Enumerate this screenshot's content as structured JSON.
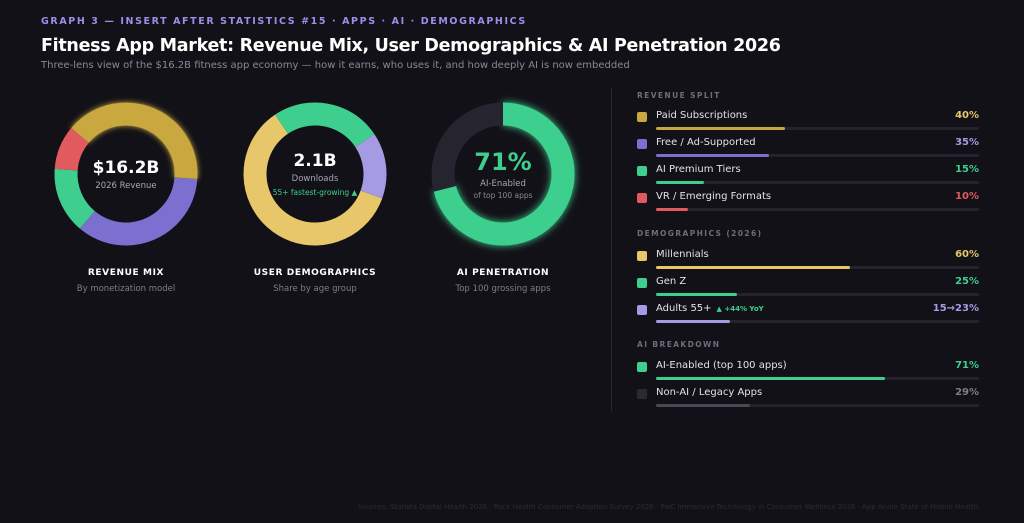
{
  "header": {
    "kicker": "GRAPH 3 — INSERT AFTER STATISTICS #15 · APPS · AI · DEMOGRAPHICS",
    "title": "Fitness App Market: Revenue Mix, User Demographics & AI Penetration 2026",
    "subtitle": "Three-lens view of the $16.2B fitness app economy — how it earns, who uses it, and how deeply AI is now embedded"
  },
  "chart_data": [
    {
      "type": "pie",
      "title": "REVENUE MIX",
      "subtitle": "By monetization model",
      "center_value": "$16.2B",
      "center_label": "2026 Revenue",
      "slices": [
        {
          "name": "Paid Subscriptions",
          "value": 40,
          "color": "#c9a83f"
        },
        {
          "name": "Free / Ad-Supported",
          "value": 35,
          "color": "#7b6fd0"
        },
        {
          "name": "AI Premium Tiers",
          "value": 15,
          "color": "#3ecf8e"
        },
        {
          "name": "VR / Emerging Formats",
          "value": 10,
          "color": "#e05a5e"
        }
      ]
    },
    {
      "type": "pie",
      "title": "USER DEMOGRAPHICS",
      "subtitle": "Share by age group",
      "center_value": "2.1B",
      "center_label": "Downloads",
      "center_note": "55+ fastest-growing ▲",
      "slices": [
        {
          "name": "Millennials",
          "value": 60,
          "color": "#e8c76a"
        },
        {
          "name": "Gen Z",
          "value": 25,
          "color": "#3ecf8e"
        },
        {
          "name": "Adults 55+",
          "value": 15,
          "color": "#a59be3"
        }
      ]
    },
    {
      "type": "pie",
      "title": "AI PENETRATION",
      "subtitle": "Top 100 grossing apps",
      "center_value": "71%",
      "center_label": "AI-Enabled",
      "center_note": "of top 100 apps",
      "slices": [
        {
          "name": "AI-Enabled (top 100 apps)",
          "value": 71,
          "color": "#3ecf8e"
        },
        {
          "name": "Non-AI / Legacy Apps",
          "value": 29,
          "color": "#26242f"
        }
      ]
    }
  ],
  "legend": {
    "sections": [
      {
        "heading": "REVENUE SPLIT",
        "rows": [
          {
            "label": "Paid Subscriptions",
            "value": "40%",
            "fraction": 0.4,
            "color": "#c9a83f",
            "value_color": "#e8c76a"
          },
          {
            "label": "Free / Ad-Supported",
            "value": "35%",
            "fraction": 0.35,
            "color": "#7b6fd0",
            "value_color": "#a59be3"
          },
          {
            "label": "AI Premium Tiers",
            "value": "15%",
            "fraction": 0.15,
            "color": "#3ecf8e",
            "value_color": "#3ecf8e"
          },
          {
            "label": "VR / Emerging Formats",
            "value": "10%",
            "fraction": 0.1,
            "color": "#e05a5e",
            "value_color": "#e05a5e"
          }
        ]
      },
      {
        "heading": "DEMOGRAPHICS (2026)",
        "rows": [
          {
            "label": "Millennials",
            "value": "60%",
            "fraction": 0.6,
            "color": "#e8c76a",
            "value_color": "#e8c76a"
          },
          {
            "label": "Gen Z",
            "value": "25%",
            "fraction": 0.25,
            "color": "#3ecf8e",
            "value_color": "#3ecf8e"
          },
          {
            "label": "Adults 55+",
            "tag": "▲ +44% YoY",
            "value": "15→23%",
            "fraction": 0.23,
            "color": "#a59be3",
            "value_color": "#a59be3"
          }
        ]
      },
      {
        "heading": "AI BREAKDOWN",
        "rows": [
          {
            "label": "AI-Enabled (top 100 apps)",
            "value": "71%",
            "fraction": 0.71,
            "color": "#3ecf8e",
            "value_color": "#3ecf8e"
          },
          {
            "label": "Non-AI / Legacy Apps",
            "value": "29%",
            "fraction": 0.29,
            "color": "#2b2934",
            "value_color": "#7f7d8a",
            "fill_color": "#4a4856"
          }
        ]
      }
    ]
  },
  "footer": {
    "sources": "Sources: Statista Digital Health 2026 · Rock Health Consumer Adoption Survey 2026 · PwC Immersive Technology in Consumer Wellness 2026 · App Annie State of Mobile Health"
  }
}
